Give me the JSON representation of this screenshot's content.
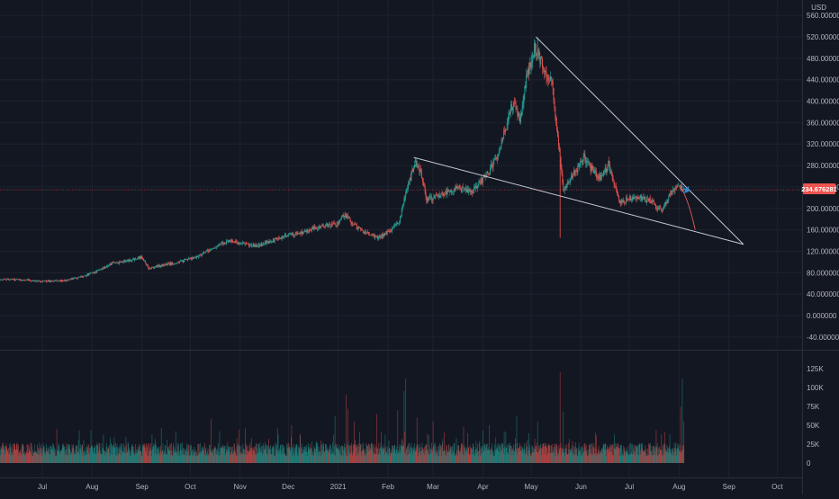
{
  "chart_data": [
    {
      "type": "candlestick",
      "currency": "USD",
      "y_ticks": [
        "560.000000",
        "520.000000",
        "480.000000",
        "440.000000",
        "400.000000",
        "360.000000",
        "320.000000",
        "280.000000",
        "240.000000",
        "200.000000",
        "160.000000",
        "120.000000",
        "80.000000",
        "40.000000",
        "0.000000",
        "-40.000000"
      ],
      "ylim": [
        -60,
        566
      ],
      "x_labels": [
        "Jul",
        "Aug",
        "Sep",
        "Oct",
        "Nov",
        "Dec",
        "2021",
        "Feb",
        "Mar",
        "Apr",
        "May",
        "Jun",
        "Jul",
        "Aug",
        "Sep",
        "Oct"
      ],
      "last_price": "234.676281",
      "price_path": [
        [
          "2020-06-08",
          68
        ],
        [
          "2020-06-20",
          66
        ],
        [
          "2020-07-01",
          64
        ],
        [
          "2020-07-15",
          65
        ],
        [
          "2020-07-25",
          72
        ],
        [
          "2020-08-05",
          84
        ],
        [
          "2020-08-14",
          98
        ],
        [
          "2020-08-25",
          104
        ],
        [
          "2020-09-01",
          110
        ],
        [
          "2020-09-05",
          88
        ],
        [
          "2020-09-15",
          95
        ],
        [
          "2020-09-25",
          100
        ],
        [
          "2020-10-05",
          110
        ],
        [
          "2020-10-15",
          125
        ],
        [
          "2020-10-25",
          140
        ],
        [
          "2020-11-01",
          135
        ],
        [
          "2020-11-10",
          130
        ],
        [
          "2020-11-20",
          138
        ],
        [
          "2020-11-30",
          150
        ],
        [
          "2020-12-10",
          155
        ],
        [
          "2020-12-20",
          166
        ],
        [
          "2020-12-31",
          170
        ],
        [
          "2021-01-05",
          190
        ],
        [
          "2021-01-10",
          172
        ],
        [
          "2021-01-15",
          160
        ],
        [
          "2021-01-25",
          145
        ],
        [
          "2021-02-01",
          155
        ],
        [
          "2021-02-08",
          175
        ],
        [
          "2021-02-13",
          240
        ],
        [
          "2021-02-18",
          285
        ],
        [
          "2021-02-22",
          262
        ],
        [
          "2021-02-25",
          215
        ],
        [
          "2021-03-05",
          225
        ],
        [
          "2021-03-15",
          238
        ],
        [
          "2021-03-25",
          230
        ],
        [
          "2021-04-01",
          255
        ],
        [
          "2021-04-05",
          270
        ],
        [
          "2021-04-10",
          300
        ],
        [
          "2021-04-15",
          350
        ],
        [
          "2021-04-20",
          400
        ],
        [
          "2021-04-24",
          360
        ],
        [
          "2021-04-28",
          440
        ],
        [
          "2021-05-03",
          500
        ],
        [
          "2021-05-06",
          480
        ],
        [
          "2021-05-10",
          455
        ],
        [
          "2021-05-14",
          430
        ],
        [
          "2021-05-18",
          320
        ],
        [
          "2021-05-21",
          235
        ],
        [
          "2021-05-25",
          255
        ],
        [
          "2021-05-30",
          275
        ],
        [
          "2021-06-03",
          295
        ],
        [
          "2021-06-08",
          270
        ],
        [
          "2021-06-13",
          255
        ],
        [
          "2021-06-18",
          282
        ],
        [
          "2021-06-21",
          255
        ],
        [
          "2021-06-25",
          210
        ],
        [
          "2021-07-01",
          218
        ],
        [
          "2021-07-08",
          220
        ],
        [
          "2021-07-15",
          212
        ],
        [
          "2021-07-21",
          195
        ],
        [
          "2021-07-27",
          228
        ],
        [
          "2021-08-01",
          242
        ],
        [
          "2021-08-04",
          234.68
        ]
      ],
      "spikes": [
        [
          "2021-05-19",
          145,
          "low"
        ],
        [
          "2021-05-05",
          518,
          "high"
        ],
        [
          "2021-02-18",
          295,
          "high"
        ]
      ],
      "trendlines": [
        {
          "from": [
            "2021-02-17",
            295
          ],
          "to": [
            "2021-09-10",
            133
          ],
          "color": "#c7c9d1"
        },
        {
          "from": [
            "2021-05-04",
            520
          ],
          "to": [
            "2021-09-10",
            133
          ],
          "color": "#c7c9d1"
        }
      ],
      "projection": {
        "points": [
          [
            "2021-08-02",
            240
          ],
          [
            "2021-08-07",
            215
          ],
          [
            "2021-08-11",
            160
          ]
        ],
        "color": "#e05a5a"
      },
      "arrow": {
        "at": [
          "2021-08-02",
          248
        ],
        "color": "#2d8bd6"
      },
      "colors": {
        "up": "#26a69a",
        "down": "#ef5350",
        "background": "#131722",
        "grid": "#1e222d",
        "price_line": "#ef5350"
      }
    },
    {
      "type": "bar",
      "name": "volume",
      "y_ticks": [
        "125K",
        "100K",
        "75K",
        "50K",
        "25K",
        "0"
      ],
      "ylim": [
        0,
        130000
      ],
      "base_level": 18000,
      "noise_level": 9000,
      "spikes": [
        [
          "2020-07-10",
          45000
        ],
        [
          "2020-08-08",
          38000
        ],
        [
          "2020-08-22",
          35000
        ],
        [
          "2020-09-22",
          42000
        ],
        [
          "2020-10-14",
          58000
        ],
        [
          "2020-11-08",
          33000
        ],
        [
          "2020-12-03",
          50000
        ],
        [
          "2020-12-30",
          62000
        ],
        [
          "2021-01-06",
          90000
        ],
        [
          "2021-01-07",
          72000
        ],
        [
          "2021-01-11",
          55000
        ],
        [
          "2021-01-25",
          65000
        ],
        [
          "2021-02-07",
          70000
        ],
        [
          "2021-02-11",
          95000
        ],
        [
          "2021-02-12",
          112000
        ],
        [
          "2021-02-19",
          60000
        ],
        [
          "2021-03-01",
          55000
        ],
        [
          "2021-03-20",
          48000
        ],
        [
          "2021-04-05",
          50000
        ],
        [
          "2021-04-22",
          62000
        ],
        [
          "2021-05-05",
          55000
        ],
        [
          "2021-05-19",
          120000
        ],
        [
          "2021-05-21",
          68000
        ],
        [
          "2021-06-10",
          40000
        ],
        [
          "2021-07-21",
          38000
        ],
        [
          "2021-08-03",
          112000
        ],
        [
          "2021-08-02",
          75000
        ],
        [
          "2021-08-04",
          55000
        ]
      ]
    }
  ]
}
